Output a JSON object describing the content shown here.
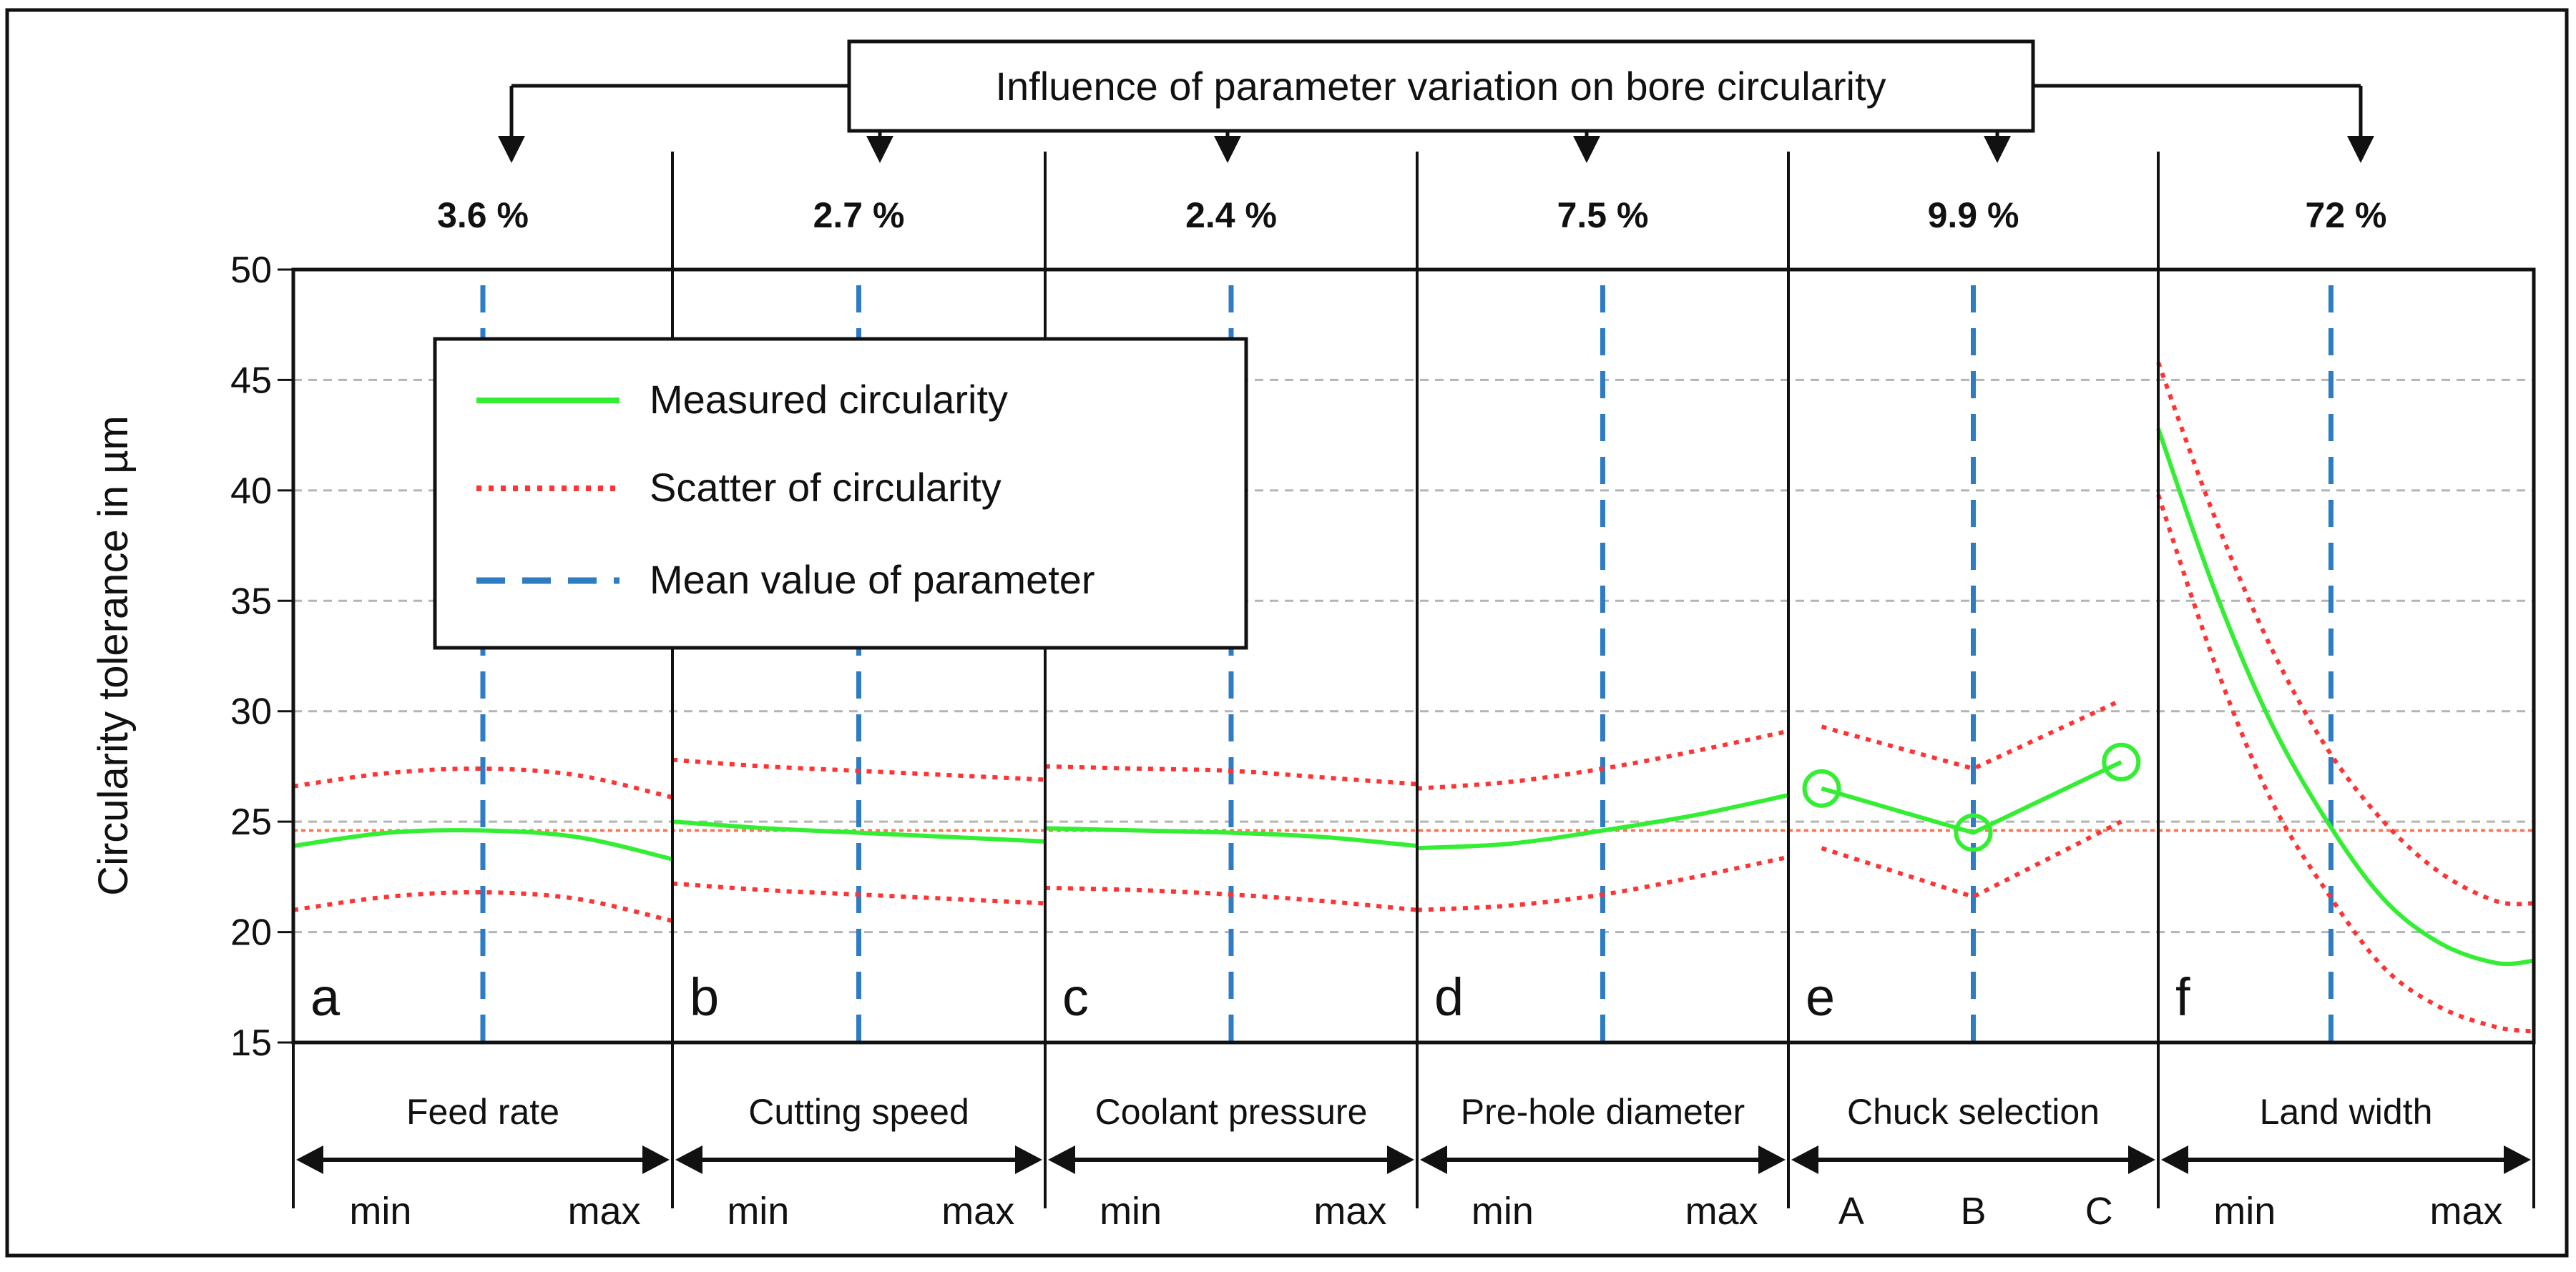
{
  "chart_data": {
    "type": "line",
    "title": "Influence of parameter variation on bore circularity",
    "ylabel": "Circularity tolerance in µm",
    "ylim": [
      15,
      50
    ],
    "yticks": [
      15,
      20,
      25,
      30,
      35,
      40,
      45,
      50
    ],
    "grid": true,
    "reference_level": 24.6,
    "legend": {
      "position": "top-left",
      "entries": [
        {
          "label": "Measured circularity",
          "style": "solid",
          "color": "#33ee33"
        },
        {
          "label": "Scatter of circularity",
          "style": "dotted",
          "color": "#ff3333"
        },
        {
          "label": "Mean value of parameter",
          "style": "dashed",
          "color": "#2e7cc4"
        }
      ]
    },
    "panels": [
      {
        "letter": "a",
        "parameter": "Feed rate",
        "influence": "3.6 %",
        "range_labels": [
          "min",
          "max"
        ],
        "mean_x": 0.5,
        "smooth": true,
        "markers": false,
        "x": [
          0,
          0.25,
          0.5,
          0.75,
          1
        ],
        "measured": [
          23.9,
          24.5,
          24.6,
          24.3,
          23.3
        ],
        "scatter_upper": [
          26.6,
          27.2,
          27.4,
          27.1,
          26.1
        ],
        "scatter_lower": [
          21.0,
          21.6,
          21.8,
          21.5,
          20.5
        ]
      },
      {
        "letter": "b",
        "parameter": "Cutting speed",
        "influence": "2.7 %",
        "range_labels": [
          "min",
          "max"
        ],
        "mean_x": 0.5,
        "smooth": true,
        "markers": false,
        "x": [
          0,
          0.25,
          0.5,
          0.75,
          1
        ],
        "measured": [
          25.0,
          24.7,
          24.5,
          24.3,
          24.1
        ],
        "scatter_upper": [
          27.8,
          27.5,
          27.3,
          27.1,
          26.9
        ],
        "scatter_lower": [
          22.2,
          21.9,
          21.7,
          21.5,
          21.3
        ]
      },
      {
        "letter": "c",
        "parameter": "Coolant pressure",
        "influence": "2.4 %",
        "range_labels": [
          "min",
          "max"
        ],
        "mean_x": 0.5,
        "smooth": true,
        "markers": false,
        "x": [
          0,
          0.25,
          0.5,
          0.75,
          1
        ],
        "measured": [
          24.7,
          24.6,
          24.5,
          24.3,
          23.9
        ],
        "scatter_upper": [
          27.5,
          27.4,
          27.3,
          27.0,
          26.7
        ],
        "scatter_lower": [
          22.0,
          21.9,
          21.7,
          21.4,
          21.0
        ]
      },
      {
        "letter": "d",
        "parameter": "Pre-hole diameter",
        "influence": "7.5 %",
        "range_labels": [
          "min",
          "max"
        ],
        "mean_x": 0.5,
        "smooth": true,
        "markers": false,
        "x": [
          0,
          0.25,
          0.5,
          0.75,
          1
        ],
        "measured": [
          23.8,
          24.0,
          24.6,
          25.3,
          26.2
        ],
        "scatter_upper": [
          26.5,
          26.8,
          27.4,
          28.2,
          29.1
        ],
        "scatter_lower": [
          21.0,
          21.2,
          21.7,
          22.5,
          23.4
        ]
      },
      {
        "letter": "e",
        "parameter": "Chuck selection",
        "influence": "9.9 %",
        "range_labels": [
          "A",
          "B",
          "C"
        ],
        "mean_x": 0.5,
        "smooth": false,
        "markers": true,
        "x": [
          0.09,
          0.5,
          0.9
        ],
        "measured": [
          26.5,
          24.5,
          27.7
        ],
        "scatter_upper": [
          29.3,
          27.4,
          30.5
        ],
        "scatter_lower": [
          23.8,
          21.6,
          25.0
        ]
      },
      {
        "letter": "f",
        "parameter": "Land width",
        "influence": "72 %",
        "range_labels": [
          "min",
          "max"
        ],
        "mean_x": 0.46,
        "smooth": true,
        "markers": false,
        "x": [
          0,
          0.15,
          0.3,
          0.45,
          0.6,
          0.75,
          0.9,
          1
        ],
        "measured": [
          42.8,
          35.5,
          29.5,
          25.0,
          21.5,
          19.5,
          18.6,
          18.7
        ],
        "scatter_upper": [
          45.8,
          38.8,
          32.9,
          28.3,
          25.0,
          22.7,
          21.4,
          21.3
        ],
        "scatter_lower": [
          39.8,
          32.2,
          26.0,
          21.8,
          18.4,
          16.6,
          15.7,
          15.5
        ]
      }
    ]
  }
}
